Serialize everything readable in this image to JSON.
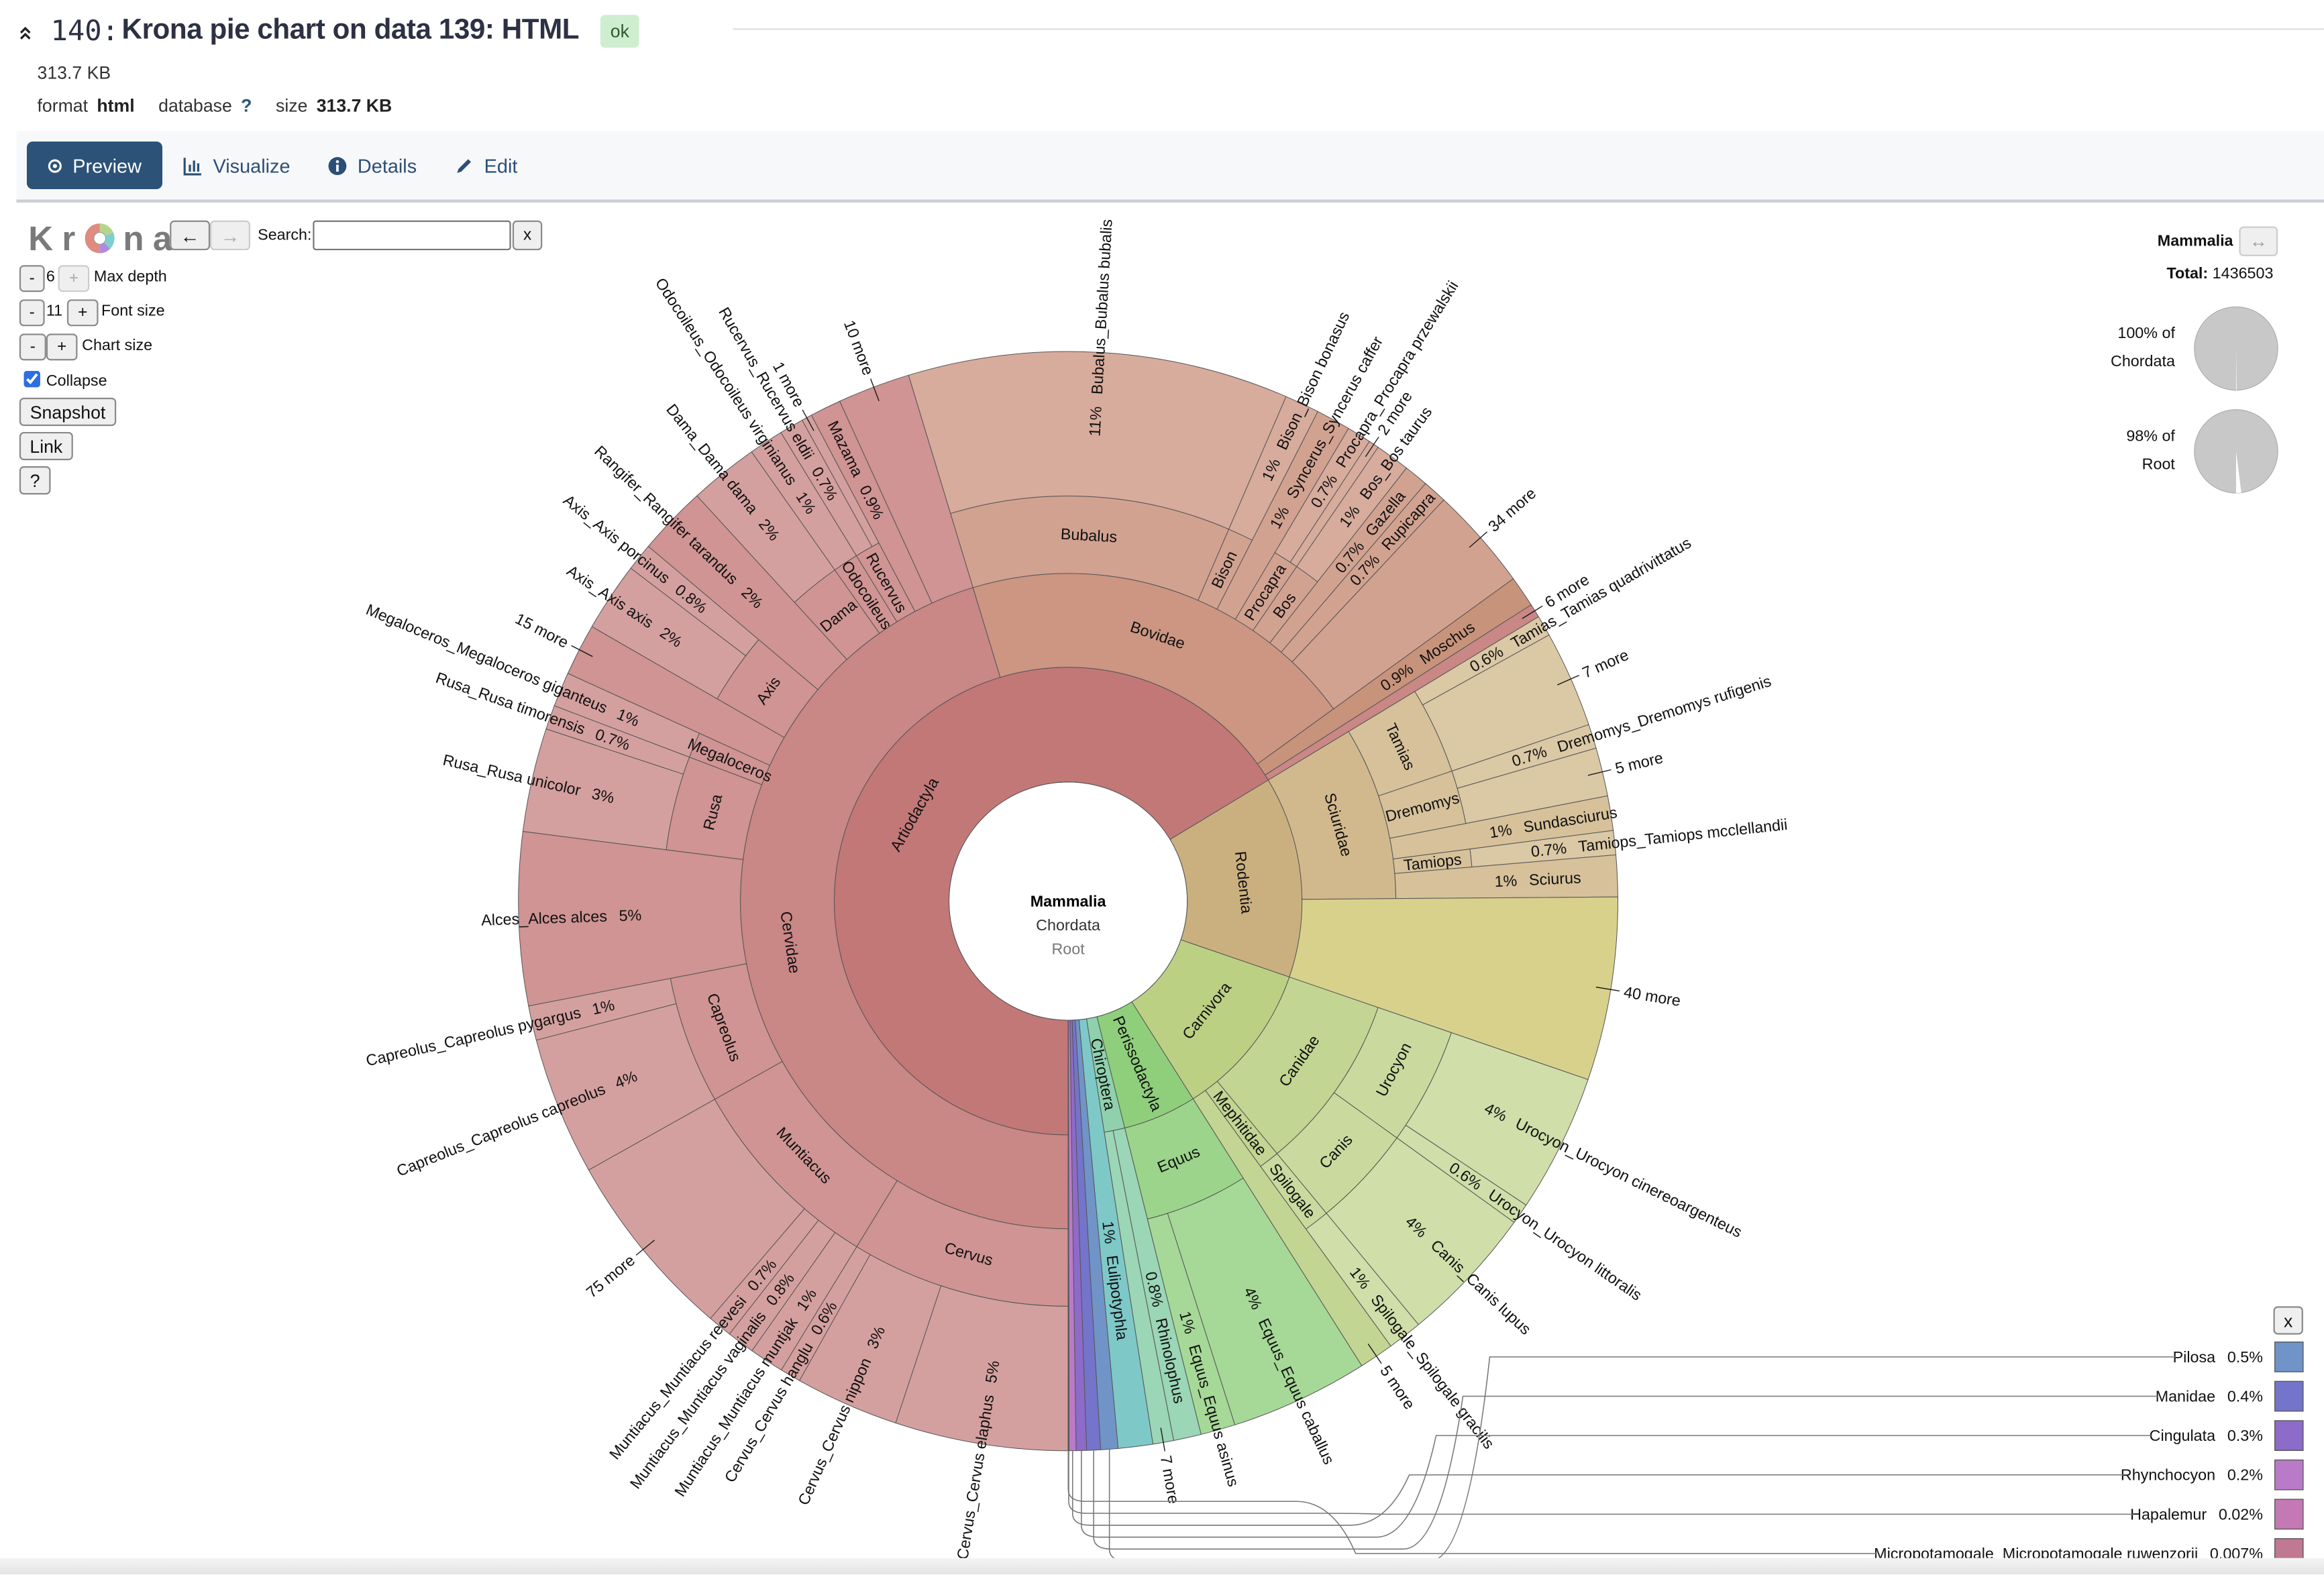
{
  "header": {
    "collapse_icon": "double-chevron-up-icon",
    "title_number": "140:",
    "title": "Krona pie chart on data 139: HTML",
    "state": "ok",
    "size_short": "313.7 KB",
    "meta": [
      {
        "label": "format",
        "value": "html"
      },
      {
        "label": "database",
        "value": "?"
      },
      {
        "label": "size",
        "value": "313.7 KB"
      }
    ]
  },
  "tabs": [
    {
      "label": "Preview",
      "icon": "eye-icon",
      "active": true
    },
    {
      "label": "Visualize",
      "icon": "bar-chart-icon",
      "active": false
    },
    {
      "label": "Details",
      "icon": "info-circle-icon",
      "active": false
    },
    {
      "label": "Edit",
      "icon": "pencil-icon",
      "active": false
    }
  ],
  "krona": {
    "logo": "Krona",
    "back": "←",
    "forward": "→",
    "search_label": "Search:",
    "search_value": "",
    "search_clear": "x",
    "minus": "-",
    "plus": "+",
    "max_depth": {
      "value": "6",
      "label": "Max depth"
    },
    "font_size": {
      "value": "11",
      "label": "Font size"
    },
    "chart_size": {
      "label": "Chart size"
    },
    "collapse": {
      "label": "Collapse",
      "checked": true
    },
    "snapshot": "Snapshot",
    "link": "Link",
    "help": "?"
  },
  "details": {
    "name": "Mammalia",
    "swap": "↔",
    "total_label": "Total:",
    "total": "1436503",
    "ancestors": [
      {
        "pct": "100% of",
        "name": "Chordata",
        "fraction": 1.0
      },
      {
        "pct": "98% of",
        "name": "Root",
        "fraction": 0.98
      }
    ]
  },
  "legend_close": "x",
  "chart_data": {
    "type": "pie",
    "center": {
      "name": "Mammalia",
      "parent": "Chordata",
      "grandparent": "Root"
    },
    "unit": "% of Mammalia",
    "root": {
      "name": "Mammalia",
      "children": [
        {
          "name": "Artiodactyla",
          "color": "#c27877",
          "children": [
            {
              "name": "Cervidae",
              "children": [
                {
                  "name": "Cervus",
                  "children": [
                    {
                      "name": "Cervus_Cervus elaphus",
                      "value": 5,
                      "pct": "5%"
                    },
                    {
                      "name": "Cervus_Cervus nippon",
                      "value": 3,
                      "pct": "3%"
                    },
                    {
                      "name": "Cervus_Cervus hanglu",
                      "value": 0.6,
                      "pct": "0.6%"
                    }
                  ]
                },
                {
                  "name": "Muntiacus",
                  "children": [
                    {
                      "name": "Muntiacus_Muntiacus muntjak",
                      "value": 1,
                      "pct": "1%"
                    },
                    {
                      "name": "Muntiacus_Muntiacus vaginalis",
                      "value": 0.8,
                      "pct": "0.8%"
                    },
                    {
                      "name": "Muntiacus_Muntiacus reevesi",
                      "value": 0.7,
                      "pct": "0.7%"
                    },
                    {
                      "name": "75 more",
                      "value": 5.5,
                      "more": true
                    }
                  ]
                },
                {
                  "name": "Capreolus",
                  "children": [
                    {
                      "name": "Capreolus_Capreolus capreolus",
                      "value": 4,
                      "pct": "4%"
                    },
                    {
                      "name": "Capreolus_Capreolus pygargus",
                      "value": 1,
                      "pct": "1%"
                    }
                  ]
                },
                {
                  "name": "Alces_Alces alces",
                  "value": 5,
                  "pct": "5%"
                },
                {
                  "name": "Rusa",
                  "children": [
                    {
                      "name": "Rusa_Rusa unicolor",
                      "value": 3,
                      "pct": "3%"
                    },
                    {
                      "name": "Rusa_Rusa timorensis",
                      "value": 0.7,
                      "pct": "0.7%"
                    }
                  ]
                },
                {
                  "name": "Megaloceros",
                  "children": [
                    {
                      "name": "Megaloceros_Megaloceros giganteus",
                      "value": 1,
                      "pct": "1%"
                    }
                  ]
                },
                {
                  "name": "15 more",
                  "value": 1.5,
                  "more": true
                },
                {
                  "name": "Axis",
                  "children": [
                    {
                      "name": "Axis_Axis axis",
                      "value": 2,
                      "pct": "2%"
                    },
                    {
                      "name": "Axis_Axis porcinus",
                      "value": 0.8,
                      "pct": "0.8%"
                    }
                  ]
                },
                {
                  "name": "Rangifer_Rangifer tarandus",
                  "value": 2,
                  "pct": "2%"
                },
                {
                  "name": "Dama",
                  "children": [
                    {
                      "name": "Dama_Dama dama",
                      "value": 2,
                      "pct": "2%"
                    }
                  ]
                },
                {
                  "name": "Odocoileus",
                  "children": [
                    {
                      "name": "Odocoileus_Odocoileus virginianus",
                      "value": 1,
                      "pct": "1%"
                    }
                  ]
                },
                {
                  "name": "Rucervus",
                  "children": [
                    {
                      "name": "Rucervus_Rucervus eldii",
                      "value": 0.7,
                      "pct": "0.7%"
                    },
                    {
                      "name": "1 more",
                      "value": 0.3,
                      "more": true
                    }
                  ]
                },
                {
                  "name": "Mazama",
                  "value": 0.9,
                  "pct": "0.9%"
                },
                {
                  "name": "10 more",
                  "value": 2.1,
                  "more": true
                }
              ]
            },
            {
              "name": "Bovidae",
              "color": "#cc9683",
              "children": [
                {
                  "name": "Bubalus",
                  "children": [
                    {
                      "name": "Bubalus_Bubalus bubalis",
                      "value": 11,
                      "pct": "11%"
                    }
                  ]
                },
                {
                  "name": "Bison",
                  "children": [
                    {
                      "name": "Bison_Bison bonasus",
                      "value": 1,
                      "pct": "1%"
                    }
                  ]
                },
                {
                  "name": "Syncerus_Syncerus caffer",
                  "value": 1,
                  "pct": "1%"
                },
                {
                  "name": "Procapra",
                  "children": [
                    {
                      "name": "Procapra_Procapra przewalskii",
                      "value": 0.7,
                      "pct": "0.7%"
                    },
                    {
                      "name": "2 more",
                      "value": 0.3,
                      "more": true
                    }
                  ]
                },
                {
                  "name": "Bos",
                  "children": [
                    {
                      "name": "Bos_Bos taurus",
                      "value": 1,
                      "pct": "1%"
                    }
                  ]
                },
                {
                  "name": "Gazella",
                  "value": 0.7,
                  "pct": "0.7%"
                },
                {
                  "name": "Rupicapra",
                  "value": 0.7,
                  "pct": "0.7%"
                },
                {
                  "name": "34 more",
                  "value": 3,
                  "more": true
                }
              ]
            },
            {
              "name": "Moschus",
              "color": "#c8937b",
              "value": 0.9,
              "pct": "0.9%"
            },
            {
              "name": "6 more",
              "value": 0.4,
              "more": true
            }
          ]
        },
        {
          "name": "Rodentia",
          "color": "#cbb07f",
          "children": [
            {
              "name": "Sciuridae",
              "children": [
                {
                  "name": "Tamias",
                  "children": [
                    {
                      "name": "Tamias_Tamias quadrivittatus",
                      "value": 0.6,
                      "pct": "0.6%"
                    },
                    {
                      "name": "7 more",
                      "value": 2.8,
                      "more": true
                    }
                  ]
                },
                {
                  "name": "Dremomys",
                  "children": [
                    {
                      "name": "Dremomys_Dremomys rufigenis",
                      "value": 0.7,
                      "pct": "0.7%"
                    },
                    {
                      "name": "5 more",
                      "value": 1.4,
                      "more": true
                    }
                  ]
                },
                {
                  "name": "Sundasciurus",
                  "value": 1,
                  "pct": "1%"
                },
                {
                  "name": "Tamiops",
                  "children": [
                    {
                      "name": "Tamiops_Tamiops mcclellandii",
                      "value": 0.7,
                      "pct": "0.7%"
                    }
                  ]
                },
                {
                  "name": "Sciurus",
                  "value": 1.2,
                  "pct": "1%"
                }
              ]
            },
            {
              "name": "40 more",
              "color": "#d8d18c",
              "value": 5.3,
              "more": true
            }
          ]
        },
        {
          "name": "Carnivora",
          "color": "#bcd084",
          "children": [
            {
              "name": "Canidae",
              "children": [
                {
                  "name": "Urocyon",
                  "children": [
                    {
                      "name": "Urocyon_Urocyon cinereoargenteus",
                      "value": 4,
                      "pct": "4%"
                    },
                    {
                      "name": "Urocyon_Urocyon littoralis",
                      "value": 0.6,
                      "pct": "0.6%"
                    }
                  ]
                },
                {
                  "name": "Canis",
                  "children": [
                    {
                      "name": "Canis_Canis lupus",
                      "value": 4,
                      "pct": "4%"
                    }
                  ]
                }
              ]
            },
            {
              "name": "Mephitidae",
              "children": [
                {
                  "name": "Spilogale",
                  "children": [
                    {
                      "name": "Spilogale_Spilogale gracilis",
                      "value": 1,
                      "pct": "1%"
                    }
                  ]
                }
              ]
            },
            {
              "name": "5 more",
              "value": 1,
              "more": true
            }
          ]
        },
        {
          "name": "Perissodactyla",
          "color": "#8fcf7c",
          "children": [
            {
              "name": "Equus",
              "children": [
                {
                  "name": "Equus_Equus caballus",
                  "value": 4,
                  "pct": "4%"
                },
                {
                  "name": "Equus_Equus asinus",
                  "value": 1,
                  "pct": "1%"
                }
              ]
            }
          ]
        },
        {
          "name": "Chiroptera",
          "color": "#8fd1ad",
          "children": [
            {
              "name": "Rhinolophus",
              "value": 0.8,
              "pct": "0.8%"
            },
            {
              "name": "7 more",
              "value": 0.6,
              "more": true
            }
          ]
        },
        {
          "name": "Eulipotyphla",
          "color": "#7ec8c8",
          "value": 1,
          "pct": "1%"
        },
        {
          "name": "Pilosa",
          "color": "#7094c8",
          "value": 0.5,
          "pct": "0.5%",
          "callout": true
        },
        {
          "name": "Manidae",
          "color": "#7474cb",
          "value": 0.4,
          "pct": "0.4%",
          "callout": true
        },
        {
          "name": "Cingulata",
          "color": "#8d6bc8",
          "value": 0.3,
          "pct": "0.3%",
          "callout": true
        },
        {
          "name": "Rhynchocyon",
          "color": "#b97bc8",
          "value": 0.2,
          "pct": "0.2%",
          "callout": true
        },
        {
          "name": "Hapalemur",
          "color": "#c479b4",
          "value": 0.02,
          "pct": "0.02%",
          "callout": true
        },
        {
          "name": "Micropotamogale_Micropotamogale ruwenzorii",
          "color": "#c07893",
          "value": 0.007,
          "pct": "0.007%",
          "callout": true
        }
      ]
    }
  }
}
